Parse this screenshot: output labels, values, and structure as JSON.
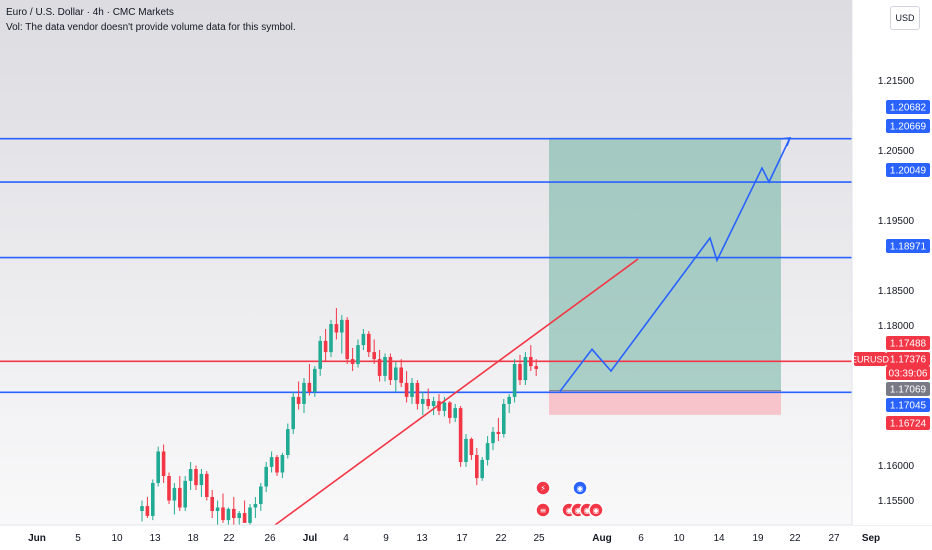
{
  "header": {
    "title": "Euro / U.S. Dollar · 4h · CMC Markets",
    "volume_note": "Vol: The data vendor doesn't provide volume data for this symbol."
  },
  "currency_button": "USD",
  "colors": {
    "background_top": "#dcdce1",
    "background_bottom": "#f9f9fa",
    "up_candle": "#22ab94",
    "down_candle": "#f23645",
    "blue_line": "#2962ff",
    "red_line": "#f23645",
    "target_zone": "#6fb3a3",
    "stop_zone": "#f7b4bc"
  },
  "chart_data": {
    "type": "candlestick",
    "symbol": "EURUSD",
    "timeframe": "4h",
    "ylim": [
      1.1515,
      1.2245
    ],
    "x_ticks": [
      "Jun",
      "5",
      "10",
      "13",
      "18",
      "22",
      "26",
      "Jul",
      "4",
      "9",
      "13",
      "17",
      "22",
      "25",
      "Aug",
      "6",
      "10",
      "14",
      "19",
      "22",
      "27",
      "Sep"
    ],
    "y_ticks": [
      "1.21500",
      "1.20500",
      "1.19500",
      "1.18500",
      "1.18000",
      "1.16000",
      "1.15500"
    ],
    "horizontal_levels": [
      {
        "label": "1.20669",
        "value": 1.20669,
        "color": "#2962ff"
      },
      {
        "label": "1.20049",
        "value": 1.20049,
        "color": "#2962ff"
      },
      {
        "label": "1.18971",
        "value": 1.18971,
        "color": "#2962ff"
      },
      {
        "label": "1.17488",
        "value": 1.17488,
        "color": "#f23645"
      },
      {
        "label": "1.17045",
        "value": 1.17045,
        "color": "#2962ff"
      }
    ],
    "price_labels": [
      {
        "label": "1.20682",
        "value": 1.20682,
        "color": "#2962ff"
      },
      {
        "label": "1.20669",
        "value": 1.20669,
        "color": "#2962ff"
      },
      {
        "label": "1.20049",
        "value": 1.20049,
        "color": "#2962ff"
      },
      {
        "label": "1.18971",
        "value": 1.18971,
        "color": "#2962ff"
      },
      {
        "label": "1.17488",
        "value": 1.17488,
        "color": "#f23645"
      },
      {
        "label": "1.17376",
        "value": 1.17376,
        "color": "#f23645"
      },
      {
        "label": "03:39:06",
        "value": 1.17214,
        "color": "#f23645"
      },
      {
        "label": "1.17069",
        "value": 1.17069,
        "color": "#787b86"
      },
      {
        "label": "1.17045",
        "value": 1.17045,
        "color": "#2962ff"
      },
      {
        "label": "1.16724",
        "value": 1.16724,
        "color": "#f23645"
      }
    ],
    "symbol_tag": "EURUSD",
    "current_price": 1.17376,
    "position": {
      "entry": 1.17069,
      "target": 1.20682,
      "stop": 1.16724
    },
    "trendline": [
      [
        1.1515,
        1.1895
      ]
    ],
    "projected_path": [
      1.1706,
      1.1766,
      1.1735,
      1.1925,
      1.1893,
      1.2025,
      1.2005,
      1.2068
    ],
    "candles": [
      [
        1.1535,
        1.155,
        1.152,
        1.1542
      ],
      [
        1.1542,
        1.1555,
        1.1525,
        1.1528
      ],
      [
        1.1528,
        1.158,
        1.1522,
        1.1575
      ],
      [
        1.1575,
        1.1627,
        1.157,
        1.162
      ],
      [
        1.162,
        1.163,
        1.1575,
        1.1585
      ],
      [
        1.1585,
        1.159,
        1.1545,
        1.155
      ],
      [
        1.155,
        1.1575,
        1.153,
        1.1568
      ],
      [
        1.1568,
        1.1585,
        1.1535,
        1.154
      ],
      [
        1.154,
        1.1585,
        1.1535,
        1.1578
      ],
      [
        1.1578,
        1.1605,
        1.1565,
        1.1595
      ],
      [
        1.1595,
        1.16,
        1.1565,
        1.1572
      ],
      [
        1.1572,
        1.1595,
        1.1555,
        1.1588
      ],
      [
        1.1588,
        1.1592,
        1.155,
        1.1555
      ],
      [
        1.1555,
        1.1565,
        1.1525,
        1.1535
      ],
      [
        1.1535,
        1.155,
        1.1515,
        1.154
      ],
      [
        1.154,
        1.156,
        1.1518,
        1.1522
      ],
      [
        1.1522,
        1.154,
        1.1512,
        1.1538
      ],
      [
        1.1538,
        1.1555,
        1.1515,
        1.1525
      ],
      [
        1.1525,
        1.1535,
        1.151,
        1.1532
      ],
      [
        1.1532,
        1.155,
        1.152,
        1.1518
      ],
      [
        1.1518,
        1.1545,
        1.151,
        1.154
      ],
      [
        1.154,
        1.1555,
        1.1525,
        1.1545
      ],
      [
        1.1545,
        1.1575,
        1.1535,
        1.157
      ],
      [
        1.157,
        1.1605,
        1.1562,
        1.1598
      ],
      [
        1.1598,
        1.162,
        1.159,
        1.1612
      ],
      [
        1.1612,
        1.1615,
        1.1585,
        1.159
      ],
      [
        1.159,
        1.1618,
        1.1582,
        1.1615
      ],
      [
        1.1615,
        1.166,
        1.161,
        1.1652
      ],
      [
        1.1652,
        1.1705,
        1.1645,
        1.1698
      ],
      [
        1.1698,
        1.172,
        1.168,
        1.1688
      ],
      [
        1.1688,
        1.1725,
        1.1675,
        1.1718
      ],
      [
        1.1718,
        1.1745,
        1.17,
        1.1705
      ],
      [
        1.1705,
        1.1742,
        1.1698,
        1.1738
      ],
      [
        1.1738,
        1.1785,
        1.1728,
        1.1778
      ],
      [
        1.1778,
        1.1795,
        1.175,
        1.1762
      ],
      [
        1.1762,
        1.1808,
        1.1755,
        1.1802
      ],
      [
        1.1802,
        1.1825,
        1.178,
        1.179
      ],
      [
        1.179,
        1.1815,
        1.176,
        1.1808
      ],
      [
        1.1808,
        1.1812,
        1.1745,
        1.1752
      ],
      [
        1.1752,
        1.1768,
        1.1735,
        1.1745
      ],
      [
        1.1745,
        1.178,
        1.174,
        1.1772
      ],
      [
        1.1772,
        1.1795,
        1.1765,
        1.1788
      ],
      [
        1.1788,
        1.1792,
        1.1755,
        1.1762
      ],
      [
        1.1762,
        1.178,
        1.1745,
        1.1752
      ],
      [
        1.1752,
        1.1765,
        1.172,
        1.1728
      ],
      [
        1.1728,
        1.176,
        1.172,
        1.1755
      ],
      [
        1.1755,
        1.176,
        1.1715,
        1.1722
      ],
      [
        1.1722,
        1.1748,
        1.1705,
        1.174
      ],
      [
        1.174,
        1.1752,
        1.1712,
        1.1718
      ],
      [
        1.1718,
        1.1735,
        1.169,
        1.1698
      ],
      [
        1.1698,
        1.1725,
        1.1688,
        1.1718
      ],
      [
        1.1718,
        1.1722,
        1.168,
        1.1688
      ],
      [
        1.1688,
        1.1705,
        1.1672,
        1.1695
      ],
      [
        1.1695,
        1.171,
        1.168,
        1.1685
      ],
      [
        1.1685,
        1.1698,
        1.1672,
        1.1692
      ],
      [
        1.1692,
        1.1702,
        1.1672,
        1.1678
      ],
      [
        1.1678,
        1.1698,
        1.167,
        1.169
      ],
      [
        1.169,
        1.1692,
        1.166,
        1.1668
      ],
      [
        1.1668,
        1.1688,
        1.1662,
        1.1682
      ],
      [
        1.1682,
        1.1685,
        1.1598,
        1.1605
      ],
      [
        1.1605,
        1.1645,
        1.1598,
        1.1638
      ],
      [
        1.1638,
        1.164,
        1.1608,
        1.1615
      ],
      [
        1.1615,
        1.1625,
        1.1572,
        1.1582
      ],
      [
        1.1582,
        1.1612,
        1.1578,
        1.1608
      ],
      [
        1.1608,
        1.1642,
        1.16,
        1.1632
      ],
      [
        1.1632,
        1.1655,
        1.1622,
        1.1648
      ],
      [
        1.1648,
        1.1668,
        1.1635,
        1.1645
      ],
      [
        1.1645,
        1.1695,
        1.164,
        1.1688
      ],
      [
        1.1688,
        1.1702,
        1.1675,
        1.1698
      ],
      [
        1.1698,
        1.1752,
        1.169,
        1.1745
      ],
      [
        1.1745,
        1.1758,
        1.1715,
        1.1722
      ],
      [
        1.1722,
        1.1762,
        1.1715,
        1.1755
      ],
      [
        1.1755,
        1.1772,
        1.1735,
        1.1742
      ],
      [
        1.1742,
        1.1752,
        1.1728,
        1.1738
      ]
    ]
  }
}
